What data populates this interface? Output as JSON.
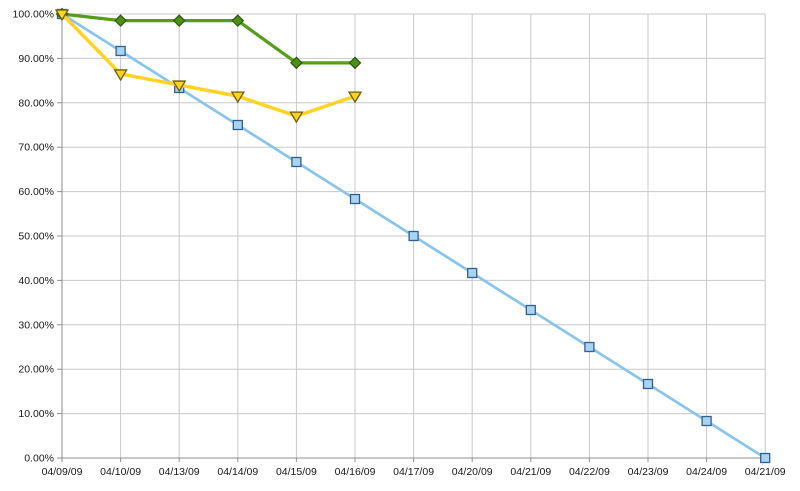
{
  "page": {
    "background_color": "#ffffff"
  },
  "chart_data": {
    "type": "line",
    "title": "",
    "xlabel": "",
    "ylabel": "",
    "ylim": [
      0,
      100
    ],
    "grid": true,
    "legend_position": "none",
    "y_tick_labels": [
      "0.00%",
      "10.00%",
      "20.00%",
      "30.00%",
      "40.00%",
      "50.00%",
      "60.00%",
      "70.00%",
      "80.00%",
      "90.00%",
      "100.00%"
    ],
    "categories": [
      "04/09/09",
      "04/10/09",
      "04/13/09",
      "04/14/09",
      "04/15/09",
      "04/16/09",
      "04/17/09",
      "04/20/09",
      "04/21/09",
      "04/22/09",
      "04/23/09",
      "04/24/09",
      "04/21/09"
    ],
    "series": [
      {
        "name": "light-blue-squares",
        "marker": "square",
        "line_color": "#89c4ee",
        "marker_fill": "#a9d3f2",
        "marker_stroke": "#31608f",
        "line_width": 2.75,
        "values": [
          100,
          91.67,
          83.33,
          75,
          66.67,
          58.33,
          50,
          41.67,
          33.33,
          25,
          16.67,
          8.33,
          0
        ]
      },
      {
        "name": "green-diamonds",
        "marker": "diamond",
        "line_color": "#579d1c",
        "marker_fill": "#4e8f19",
        "marker_stroke": "#2d5a0a",
        "line_width": 3.25,
        "values": [
          100,
          98.5,
          98.5,
          98.5,
          89,
          89
        ]
      },
      {
        "name": "yellow-triangles",
        "marker": "triangle-down",
        "line_color": "#ffd320",
        "marker_fill": "#ffd320",
        "marker_stroke": "#6b5e00",
        "line_width": 3.5,
        "values": [
          100,
          86.5,
          84,
          81.5,
          77,
          81.5
        ]
      }
    ],
    "colors": {
      "grid_color": "#c9c9c9",
      "axis_color": "#8f8f8f",
      "label_color": "#1a1a1a",
      "plot_background": "#ffffff"
    }
  }
}
